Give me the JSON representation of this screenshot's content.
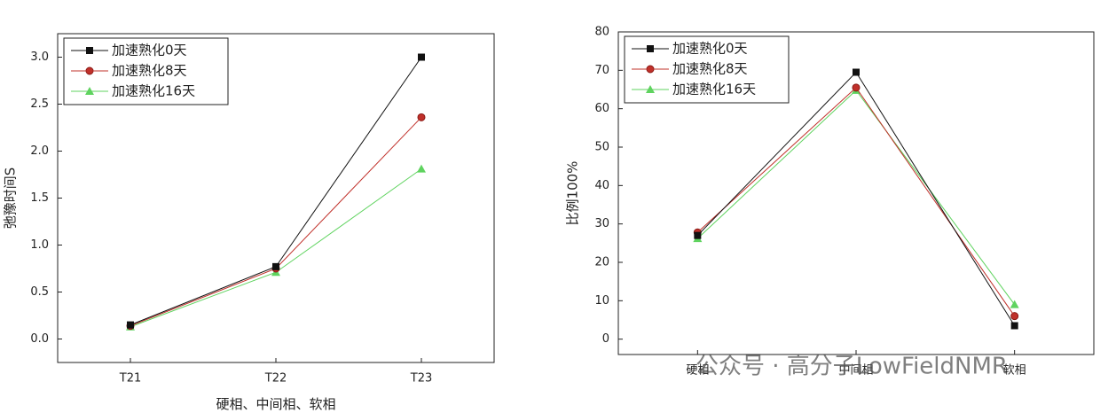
{
  "chart_data": [
    {
      "type": "line",
      "ylabel": "弛豫时间S",
      "xlabel": "硬相、中间相、软相",
      "categories": [
        "T21",
        "T22",
        "T23"
      ],
      "series": [
        {
          "name": "加速熟化0天",
          "color": "#111111",
          "marker": "square",
          "values": [
            0.15,
            0.77,
            3.0
          ]
        },
        {
          "name": "加速熟化8天",
          "color": "#c0302a",
          "marker": "circle",
          "values": [
            0.14,
            0.75,
            2.36
          ]
        },
        {
          "name": "加速熟化16天",
          "color": "#5fd35f",
          "marker": "triangle",
          "values": [
            0.13,
            0.71,
            1.81
          ]
        }
      ],
      "ylim": [
        -0.25,
        3.25
      ],
      "yticks": [
        {
          "value": 0,
          "label": "0.0"
        },
        {
          "value": 0.5,
          "label": "0.5"
        },
        {
          "value": 1,
          "label": "1.0"
        },
        {
          "value": 1.5,
          "label": "1.5"
        },
        {
          "value": 2,
          "label": "2.0"
        },
        {
          "value": 2.5,
          "label": "2.5"
        },
        {
          "value": 3,
          "label": "3.0"
        }
      ],
      "legend": "upper left"
    },
    {
      "type": "line",
      "ylabel": "比例100%",
      "categories": [
        "硬相",
        "中间相",
        "软相"
      ],
      "series": [
        {
          "name": "加速熟化0天",
          "color": "#111111",
          "marker": "square",
          "values": [
            27,
            69.5,
            3.5
          ]
        },
        {
          "name": "加速熟化8天",
          "color": "#c0302a",
          "marker": "circle",
          "values": [
            27.8,
            65.5,
            6
          ]
        },
        {
          "name": "加速熟化16天",
          "color": "#5fd35f",
          "marker": "triangle",
          "values": [
            26.2,
            64.8,
            9
          ]
        }
      ],
      "ylim": [
        -4,
        80
      ],
      "yticks": [
        0,
        10,
        20,
        30,
        40,
        50,
        60,
        70,
        80
      ],
      "legend": "upper left"
    }
  ],
  "watermark": "公众号 · 高分子LowFieldNMR"
}
